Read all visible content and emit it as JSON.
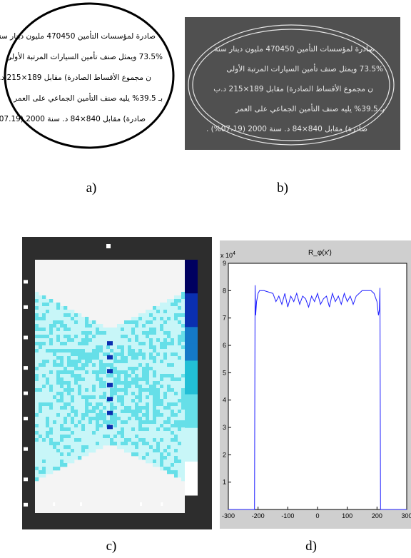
{
  "panels": {
    "a": {
      "caption": "a)",
      "lines": [
        "صادرة لمؤسسات التأمين 470450 مليون دينار سنة",
        "73.5% ويمثل صنف تأمين السيارات المرتبة الأولى",
        "ن مجموع الأقساط الصادرة) مقابل 189×215 د.ب",
        "بـ 39.5% يليه صنف التأمين الجماعي على العمر",
        "صادرة) مقابل 840×84 د. سنة 2000 (07.19%) ."
      ]
    },
    "b": {
      "caption": "b)"
    },
    "c": {
      "caption": "c)"
    },
    "d": {
      "caption": "d)"
    }
  },
  "chart_data": [
    {
      "type": "heatmap",
      "panel": "c",
      "title": "",
      "colormap": [
        "#ffffff",
        "#c8f6f8",
        "#66dfe8",
        "#22bfd6",
        "#1479c8",
        "#0a2fb0",
        "#000060"
      ]
    },
    {
      "type": "line",
      "panel": "d",
      "title": "R_φ(x')",
      "ylabel_exponent": "x 10",
      "ylabel_exponent_power": "4",
      "xlim": [
        -300,
        300
      ],
      "ylim": [
        0,
        9
      ],
      "xticks": [
        "-300",
        "-200",
        "-100",
        "0",
        "100",
        "200",
        "300"
      ],
      "yticks": [
        "1",
        "2",
        "3",
        "4",
        "5",
        "6",
        "7",
        "8",
        "9"
      ],
      "x": [
        -300,
        -212,
        -210,
        -208,
        -205,
        -200,
        -195,
        -190,
        -180,
        -150,
        -140,
        -130,
        -120,
        -110,
        -100,
        -90,
        -80,
        -70,
        -60,
        -50,
        -40,
        -30,
        -20,
        -10,
        0,
        10,
        20,
        30,
        40,
        50,
        60,
        70,
        80,
        90,
        100,
        110,
        120,
        130,
        140,
        150,
        180,
        190,
        200,
        205,
        208,
        210,
        212,
        300
      ],
      "y": [
        0,
        0,
        8.2,
        7.1,
        7.6,
        7.9,
        8.0,
        8.0,
        8.0,
        7.9,
        7.6,
        7.8,
        7.5,
        7.9,
        7.4,
        7.8,
        7.6,
        7.9,
        7.5,
        7.8,
        7.7,
        7.4,
        7.8,
        7.6,
        7.9,
        7.5,
        7.7,
        7.8,
        7.4,
        7.9,
        7.6,
        7.8,
        7.5,
        7.9,
        7.6,
        7.8,
        7.5,
        7.8,
        7.9,
        8.0,
        8.0,
        7.9,
        7.6,
        7.1,
        7.3,
        8.1,
        0,
        0
      ]
    }
  ]
}
